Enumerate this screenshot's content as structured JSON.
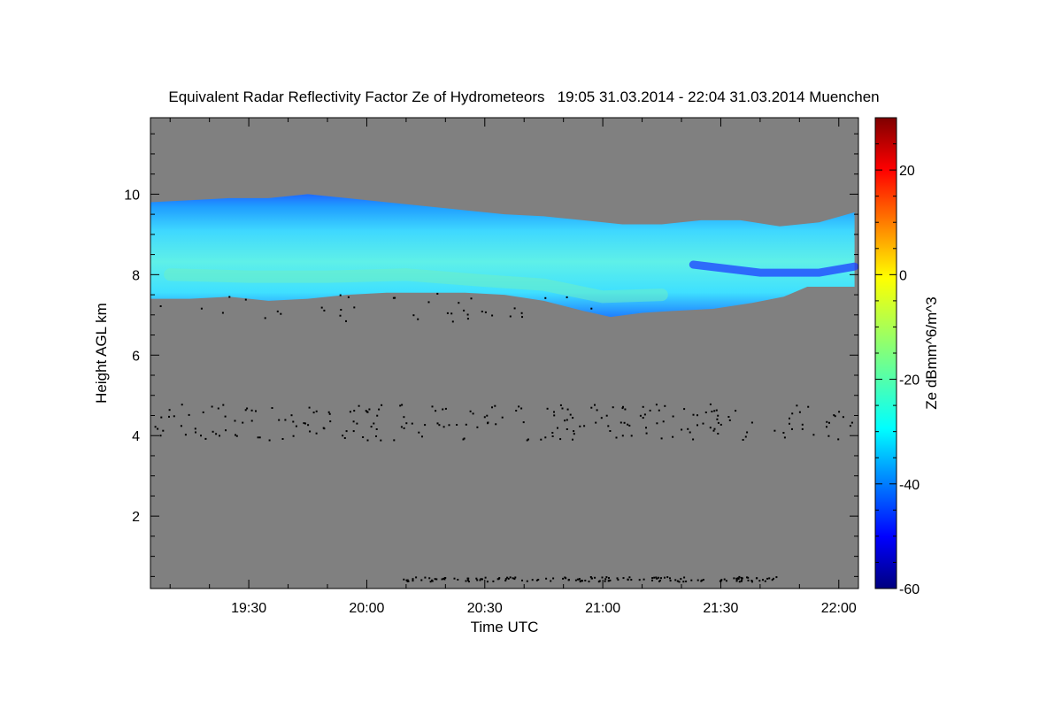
{
  "chart_data": {
    "type": "heatmap",
    "title": "Equivalent Radar Reflectivity Factor Ze of Hydrometeors   19:05 31.03.2014 - 22:04 31.03.2014 Muenchen",
    "xlabel": "Time UTC",
    "ylabel": "Height AGL km",
    "colorbar_label": "Ze dBmm^6/m^3",
    "x_start": "19:05",
    "x_end": "22:04",
    "x_start_min": 1145,
    "x_end_min": 1324,
    "xlim_min": [
      1145,
      1325
    ],
    "ylim": [
      0.2,
      11.9
    ],
    "x_ticks": [
      {
        "label": "19:30",
        "min": 1170
      },
      {
        "label": "20:00",
        "min": 1200
      },
      {
        "label": "20:30",
        "min": 1230
      },
      {
        "label": "21:00",
        "min": 1260
      },
      {
        "label": "21:30",
        "min": 1290
      },
      {
        "label": "22:00",
        "min": 1320
      }
    ],
    "y_ticks": [
      {
        "label": "2",
        "value": 2
      },
      {
        "label": "4",
        "value": 4
      },
      {
        "label": "6",
        "value": 6
      },
      {
        "label": "8",
        "value": 8
      },
      {
        "label": "10",
        "value": 10
      }
    ],
    "colorbar": {
      "range": [
        -60,
        30
      ],
      "ticks": [
        {
          "label": "20",
          "value": 20
        },
        {
          "label": "0",
          "value": 0
        },
        {
          "label": "-20",
          "value": -20
        },
        {
          "label": "-40",
          "value": -40
        },
        {
          "label": "-60",
          "value": -60
        }
      ],
      "colormap": "jet"
    },
    "background_color": "#808080",
    "cloud_layer": {
      "top_km": [
        [
          1145,
          9.8
        ],
        [
          1155,
          9.85
        ],
        [
          1165,
          9.9
        ],
        [
          1175,
          9.9
        ],
        [
          1185,
          10.0
        ],
        [
          1195,
          9.9
        ],
        [
          1205,
          9.8
        ],
        [
          1215,
          9.7
        ],
        [
          1225,
          9.6
        ],
        [
          1235,
          9.5
        ],
        [
          1245,
          9.45
        ],
        [
          1255,
          9.35
        ],
        [
          1265,
          9.25
        ],
        [
          1275,
          9.25
        ],
        [
          1285,
          9.35
        ],
        [
          1295,
          9.35
        ],
        [
          1305,
          9.2
        ],
        [
          1315,
          9.3
        ],
        [
          1324,
          9.55
        ]
      ],
      "bottom_km": [
        [
          1145,
          7.4
        ],
        [
          1155,
          7.4
        ],
        [
          1165,
          7.45
        ],
        [
          1175,
          7.35
        ],
        [
          1185,
          7.4
        ],
        [
          1195,
          7.5
        ],
        [
          1205,
          7.55
        ],
        [
          1215,
          7.55
        ],
        [
          1225,
          7.55
        ],
        [
          1235,
          7.5
        ],
        [
          1245,
          7.35
        ],
        [
          1255,
          7.1
        ],
        [
          1262,
          6.95
        ],
        [
          1270,
          7.05
        ],
        [
          1278,
          7.1
        ],
        [
          1288,
          7.15
        ],
        [
          1298,
          7.3
        ],
        [
          1306,
          7.45
        ],
        [
          1312,
          7.7
        ],
        [
          1324,
          7.7
        ]
      ],
      "core_ze_dbz": -20,
      "edge_ze_dbz": -42
    },
    "noise_dots": {
      "ze_dbz": -60,
      "bands_km": [
        {
          "name": "upper",
          "center": 7.2,
          "spread": 0.35,
          "x_range": [
            1145,
            1260
          ]
        },
        {
          "name": "middle",
          "center": 4.35,
          "spread": 0.45,
          "x_range": [
            1145,
            1324
          ]
        },
        {
          "name": "lower",
          "center": 0.45,
          "spread": 0.06,
          "x_range": [
            1209,
            1305
          ]
        }
      ]
    }
  }
}
